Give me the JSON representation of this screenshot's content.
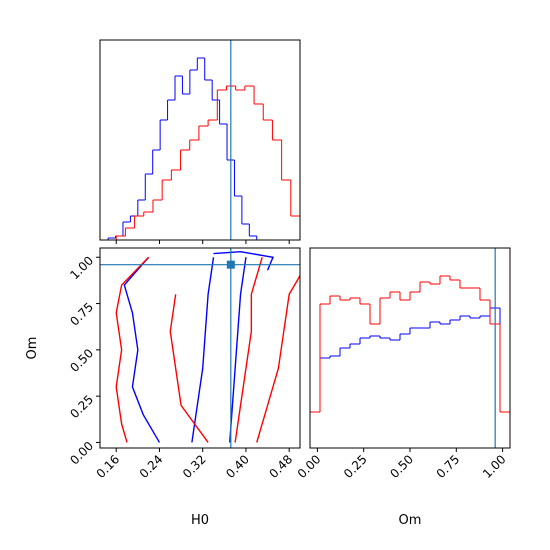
{
  "chart_data": [
    {
      "type": "histogram",
      "xlim": [
        0.13,
        0.5
      ],
      "ylim": [
        0,
        1
      ],
      "xticks": [
        0.16,
        0.24,
        0.32,
        {
          "value": 0.4,
          "label": "0.40"
        },
        0.48
      ],
      "truth": 0.372,
      "truth_color": "#1f77b4",
      "series": [
        {
          "color": "#0000ff",
          "bins": [
            0.145,
            0.15875,
            0.1725,
            0.18625,
            0.2,
            0.21375,
            0.2275,
            0.24125,
            0.255,
            0.26875,
            0.2825,
            0.29625,
            0.31,
            0.32375,
            0.3375,
            0.35125,
            0.365,
            0.37875,
            0.3925,
            0.40625,
            0.42
          ],
          "values": [
            0.01,
            0.02,
            0.09,
            0.12,
            0.2,
            0.33,
            0.45,
            0.6,
            0.7,
            0.82,
            0.73,
            0.85,
            0.91,
            0.8,
            0.7,
            0.58,
            0.4,
            0.22,
            0.08,
            0.02
          ]
        },
        {
          "color": "#ff0000",
          "bins": [
            0.16,
            0.177,
            0.194,
            0.211,
            0.228,
            0.245,
            0.262,
            0.279,
            0.296,
            0.313,
            0.33,
            0.347,
            0.364,
            0.381,
            0.398,
            0.415,
            0.432,
            0.449,
            0.466,
            0.483,
            0.5
          ],
          "values": [
            0.02,
            0.06,
            0.12,
            0.14,
            0.2,
            0.3,
            0.35,
            0.45,
            0.5,
            0.57,
            0.6,
            0.75,
            0.77,
            0.75,
            0.77,
            0.68,
            0.6,
            0.5,
            0.3,
            0.12
          ]
        }
      ]
    },
    {
      "type": "contour",
      "xlabel": "H0",
      "ylabel": "Om",
      "xlim": [
        0.13,
        0.5
      ],
      "ylim": [
        -0.03,
        1.05
      ],
      "xticks": [
        0.16,
        0.24,
        0.32,
        {
          "value": 0.4,
          "label": "0.40"
        },
        0.48
      ],
      "yticks": [
        {
          "value": 0.0,
          "label": "0.00"
        },
        0.25,
        {
          "value": 0.5,
          "label": "0.50"
        },
        0.75,
        {
          "value": 1.0,
          "label": "1.00"
        }
      ],
      "truth": [
        0.372,
        0.96
      ],
      "truth_color": "#1f77b4",
      "series": [
        {
          "color": "#0000ff",
          "x": [
            0.22,
            0.175,
            0.19,
            0.2,
            0.19,
            0.21,
            0.24
          ],
          "y": [
            1.0,
            0.85,
            0.7,
            0.5,
            0.3,
            0.15,
            0.0
          ]
        },
        {
          "color": "#0000ff",
          "x": [
            0.34,
            0.33,
            0.325,
            0.32,
            0.31,
            0.3
          ],
          "y": [
            1.0,
            0.8,
            0.6,
            0.4,
            0.2,
            0.0
          ]
        },
        {
          "color": "#0000ff",
          "x": [
            0.4,
            0.39,
            0.385,
            0.38,
            0.375,
            0.37
          ],
          "y": [
            1.0,
            0.8,
            0.6,
            0.4,
            0.2,
            0.0
          ]
        },
        {
          "color": "#0000ff",
          "x": [
            0.34,
            0.39,
            0.45,
            0.44
          ],
          "y": [
            1.02,
            1.03,
            1.0,
            0.93
          ]
        },
        {
          "color": "#ff0000",
          "x": [
            0.22,
            0.17,
            0.16,
            0.17,
            0.16,
            0.17,
            0.18
          ],
          "y": [
            1.0,
            0.85,
            0.7,
            0.5,
            0.3,
            0.1,
            0.0
          ]
        },
        {
          "color": "#ff0000",
          "x": [
            0.27,
            0.26,
            0.27,
            0.28,
            0.33
          ],
          "y": [
            0.8,
            0.6,
            0.4,
            0.2,
            0.0
          ]
        },
        {
          "color": "#ff0000",
          "x": [
            0.43,
            0.41,
            0.41,
            0.4,
            0.39,
            0.38
          ],
          "y": [
            1.0,
            0.8,
            0.6,
            0.4,
            0.2,
            0.0
          ]
        },
        {
          "color": "#ff0000",
          "x": [
            0.5,
            0.48,
            0.47,
            0.46,
            0.44,
            0.42
          ],
          "y": [
            0.9,
            0.8,
            0.6,
            0.4,
            0.2,
            0.0
          ]
        }
      ]
    },
    {
      "type": "histogram",
      "xlabel": "Om",
      "xlim": [
        -0.04,
        1.04
      ],
      "ylim": [
        0,
        1
      ],
      "xticks": [
        {
          "value": 0.0,
          "label": "0.00"
        },
        0.25,
        {
          "value": 0.5,
          "label": "0.50"
        },
        0.75,
        {
          "value": 1.0,
          "label": "1.00"
        }
      ],
      "truth": 0.96,
      "truth_color": "#1f77b4",
      "series": [
        {
          "color": "#0000ff",
          "bins": [
            -0.04,
            0.014,
            0.068,
            0.122,
            0.176,
            0.23,
            0.284,
            0.338,
            0.392,
            0.446,
            0.5,
            0.554,
            0.608,
            0.662,
            0.716,
            0.77,
            0.824,
            0.878,
            0.932,
            0.986,
            1.04
          ],
          "values": [
            0.18,
            0.45,
            0.46,
            0.5,
            0.52,
            0.55,
            0.56,
            0.55,
            0.54,
            0.57,
            0.6,
            0.6,
            0.63,
            0.62,
            0.64,
            0.66,
            0.65,
            0.66,
            0.7,
            0.18
          ]
        },
        {
          "color": "#ff0000",
          "bins": [
            -0.04,
            0.014,
            0.068,
            0.122,
            0.176,
            0.23,
            0.284,
            0.338,
            0.392,
            0.446,
            0.5,
            0.554,
            0.608,
            0.662,
            0.716,
            0.77,
            0.824,
            0.878,
            0.932,
            0.986,
            1.04
          ],
          "values": [
            0.18,
            0.72,
            0.76,
            0.74,
            0.75,
            0.72,
            0.62,
            0.75,
            0.78,
            0.74,
            0.78,
            0.83,
            0.82,
            0.86,
            0.84,
            0.8,
            0.8,
            0.74,
            0.62,
            0.18
          ]
        }
      ]
    }
  ]
}
